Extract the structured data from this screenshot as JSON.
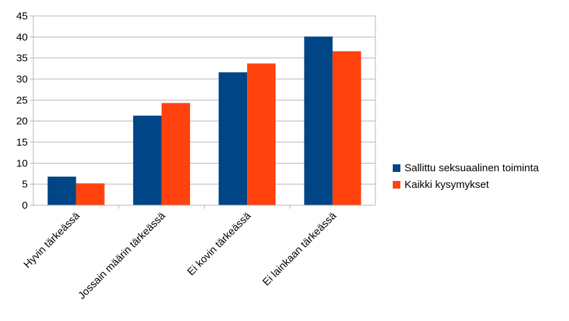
{
  "chart_data": {
    "type": "bar",
    "categories": [
      "Hyvin tärkeässä",
      "Jossain määrin tärkeässä",
      "Ei kovin tärkeässä",
      "Ei lainkaan tärkeässä"
    ],
    "series": [
      {
        "name": "Sallittu seksuaalinen toiminta",
        "color": "#004586",
        "values": [
          6.8,
          21.3,
          31.6,
          40.1
        ]
      },
      {
        "name": "Kaikki kysymykset",
        "color": "#ff420e",
        "values": [
          5.2,
          24.3,
          33.7,
          36.6
        ]
      }
    ],
    "yticks": [
      0,
      5,
      10,
      15,
      20,
      25,
      30,
      35,
      40,
      45
    ],
    "ylim": [
      0,
      45
    ],
    "grid": true,
    "legend_position": "right"
  }
}
